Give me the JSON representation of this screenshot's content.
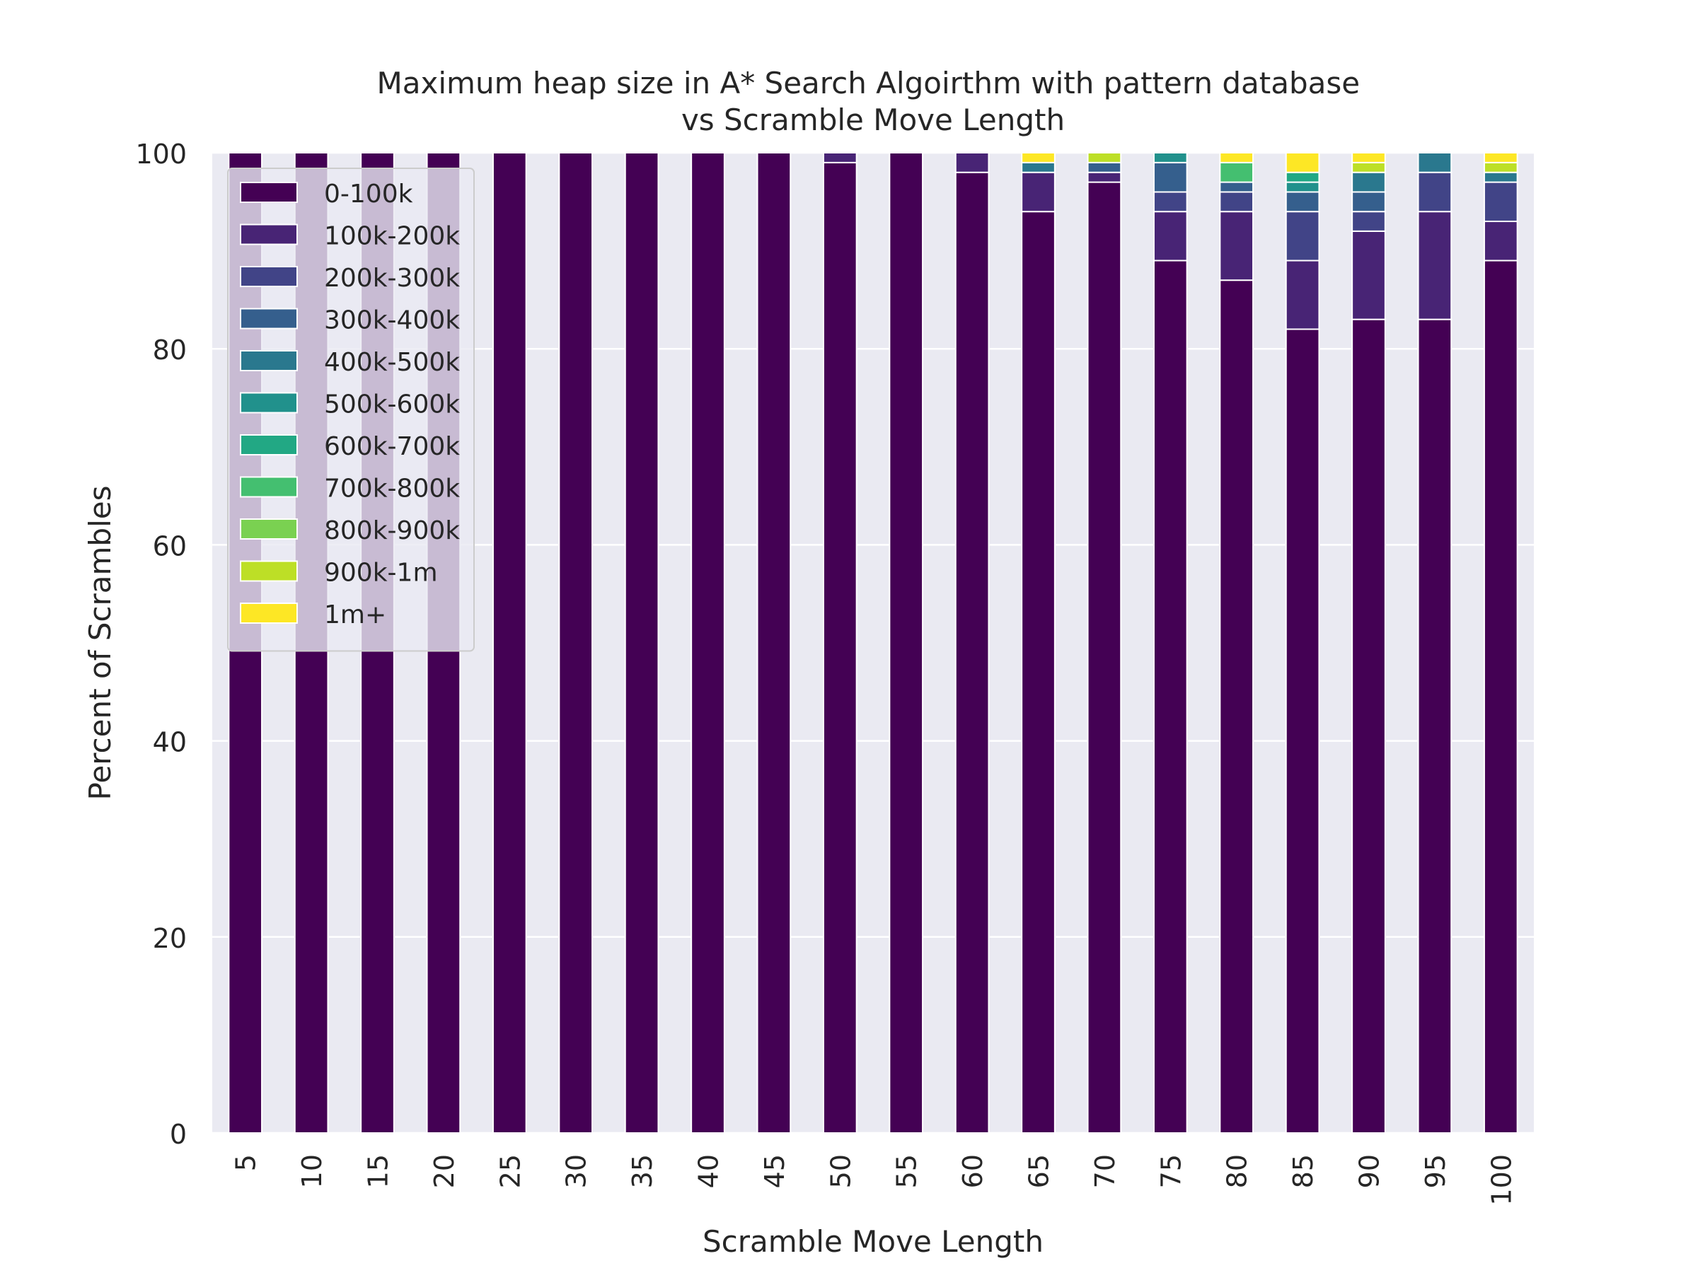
{
  "chart_data": {
    "type": "bar",
    "stacked": true,
    "title": "Maximum heap size in A* Search Algoirthm with pattern database\nvs Scramble Move Length",
    "xlabel": "Scramble Move Length",
    "ylabel": "Percent of Scrambles",
    "ylim": [
      0,
      100
    ],
    "yticks": [
      0,
      20,
      40,
      60,
      80,
      100
    ],
    "grid": true,
    "legend_position": "upper-left",
    "categories": [
      "5",
      "10",
      "15",
      "20",
      "25",
      "30",
      "35",
      "40",
      "45",
      "50",
      "55",
      "60",
      "65",
      "70",
      "75",
      "80",
      "85",
      "90",
      "95",
      "100"
    ],
    "series": [
      {
        "name": "0-100k",
        "color": "#440154",
        "values": [
          100,
          100,
          100,
          100,
          100,
          100,
          100,
          100,
          100,
          99,
          100,
          98,
          94,
          97,
          89,
          87,
          82,
          83,
          83,
          89
        ]
      },
      {
        "name": "100k-200k",
        "color": "#482475",
        "values": [
          0,
          0,
          0,
          0,
          0,
          0,
          0,
          0,
          0,
          1,
          0,
          2,
          4,
          1,
          5,
          7,
          7,
          9,
          11,
          4
        ]
      },
      {
        "name": "200k-300k",
        "color": "#414487",
        "values": [
          0,
          0,
          0,
          0,
          0,
          0,
          0,
          0,
          0,
          0,
          0,
          0,
          0,
          0,
          2,
          2,
          5,
          2,
          4,
          4
        ]
      },
      {
        "name": "300k-400k",
        "color": "#355f8d",
        "values": [
          0,
          0,
          0,
          0,
          0,
          0,
          0,
          0,
          0,
          0,
          0,
          0,
          0,
          1,
          3,
          1,
          2,
          2,
          0,
          0
        ]
      },
      {
        "name": "400k-500k",
        "color": "#2a788e",
        "values": [
          0,
          0,
          0,
          0,
          0,
          0,
          0,
          0,
          0,
          0,
          0,
          0,
          1,
          0,
          0,
          0,
          0,
          2,
          2,
          1
        ]
      },
      {
        "name": "500k-600k",
        "color": "#21918c",
        "values": [
          0,
          0,
          0,
          0,
          0,
          0,
          0,
          0,
          0,
          0,
          0,
          0,
          0,
          0,
          1,
          0,
          1,
          0,
          0,
          0
        ]
      },
      {
        "name": "600k-700k",
        "color": "#22a884",
        "values": [
          0,
          0,
          0,
          0,
          0,
          0,
          0,
          0,
          0,
          0,
          0,
          0,
          0,
          0,
          0,
          0,
          1,
          0,
          0,
          0
        ]
      },
      {
        "name": "700k-800k",
        "color": "#44bf70",
        "values": [
          0,
          0,
          0,
          0,
          0,
          0,
          0,
          0,
          0,
          0,
          0,
          0,
          0,
          0,
          0,
          2,
          0,
          0,
          0,
          0
        ]
      },
      {
        "name": "800k-900k",
        "color": "#7ad151",
        "values": [
          0,
          0,
          0,
          0,
          0,
          0,
          0,
          0,
          0,
          0,
          0,
          0,
          0,
          0,
          0,
          0,
          0,
          0,
          0,
          0
        ]
      },
      {
        "name": "900k-1m",
        "color": "#bddf26",
        "values": [
          0,
          0,
          0,
          0,
          0,
          0,
          0,
          0,
          0,
          0,
          0,
          0,
          0,
          1,
          0,
          0,
          0,
          1,
          0,
          1
        ]
      },
      {
        "name": "1m+",
        "color": "#fde725",
        "values": [
          0,
          0,
          0,
          0,
          0,
          0,
          0,
          0,
          0,
          0,
          0,
          0,
          1,
          0,
          0,
          1,
          2,
          1,
          0,
          1
        ]
      }
    ]
  }
}
